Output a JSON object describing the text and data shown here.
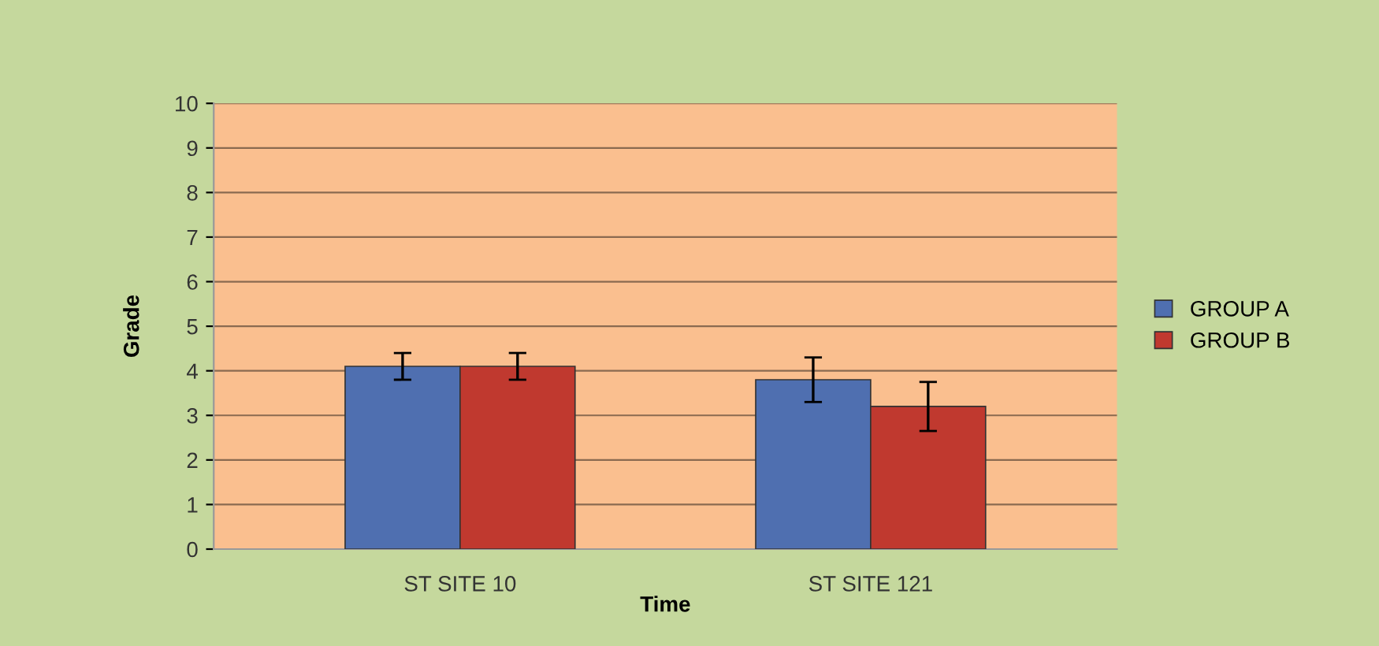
{
  "chart_data": {
    "type": "bar",
    "xlabel": "Time",
    "ylabel": "Grade",
    "categories": [
      "ST SITE 10",
      "ST SITE 121"
    ],
    "series": [
      {
        "name": "GROUP A",
        "color": "#4f6fb0",
        "values": [
          4.1,
          3.8
        ],
        "errors": [
          0.3,
          0.5
        ]
      },
      {
        "name": "GROUP B",
        "color": "#c0392f",
        "values": [
          4.1,
          3.2
        ],
        "errors": [
          0.3,
          0.55
        ]
      }
    ],
    "ylim": [
      0,
      10
    ],
    "yticks": [
      0,
      1,
      2,
      3,
      4,
      5,
      6,
      7,
      8,
      9,
      10
    ],
    "grid": "y",
    "legend": "right"
  }
}
